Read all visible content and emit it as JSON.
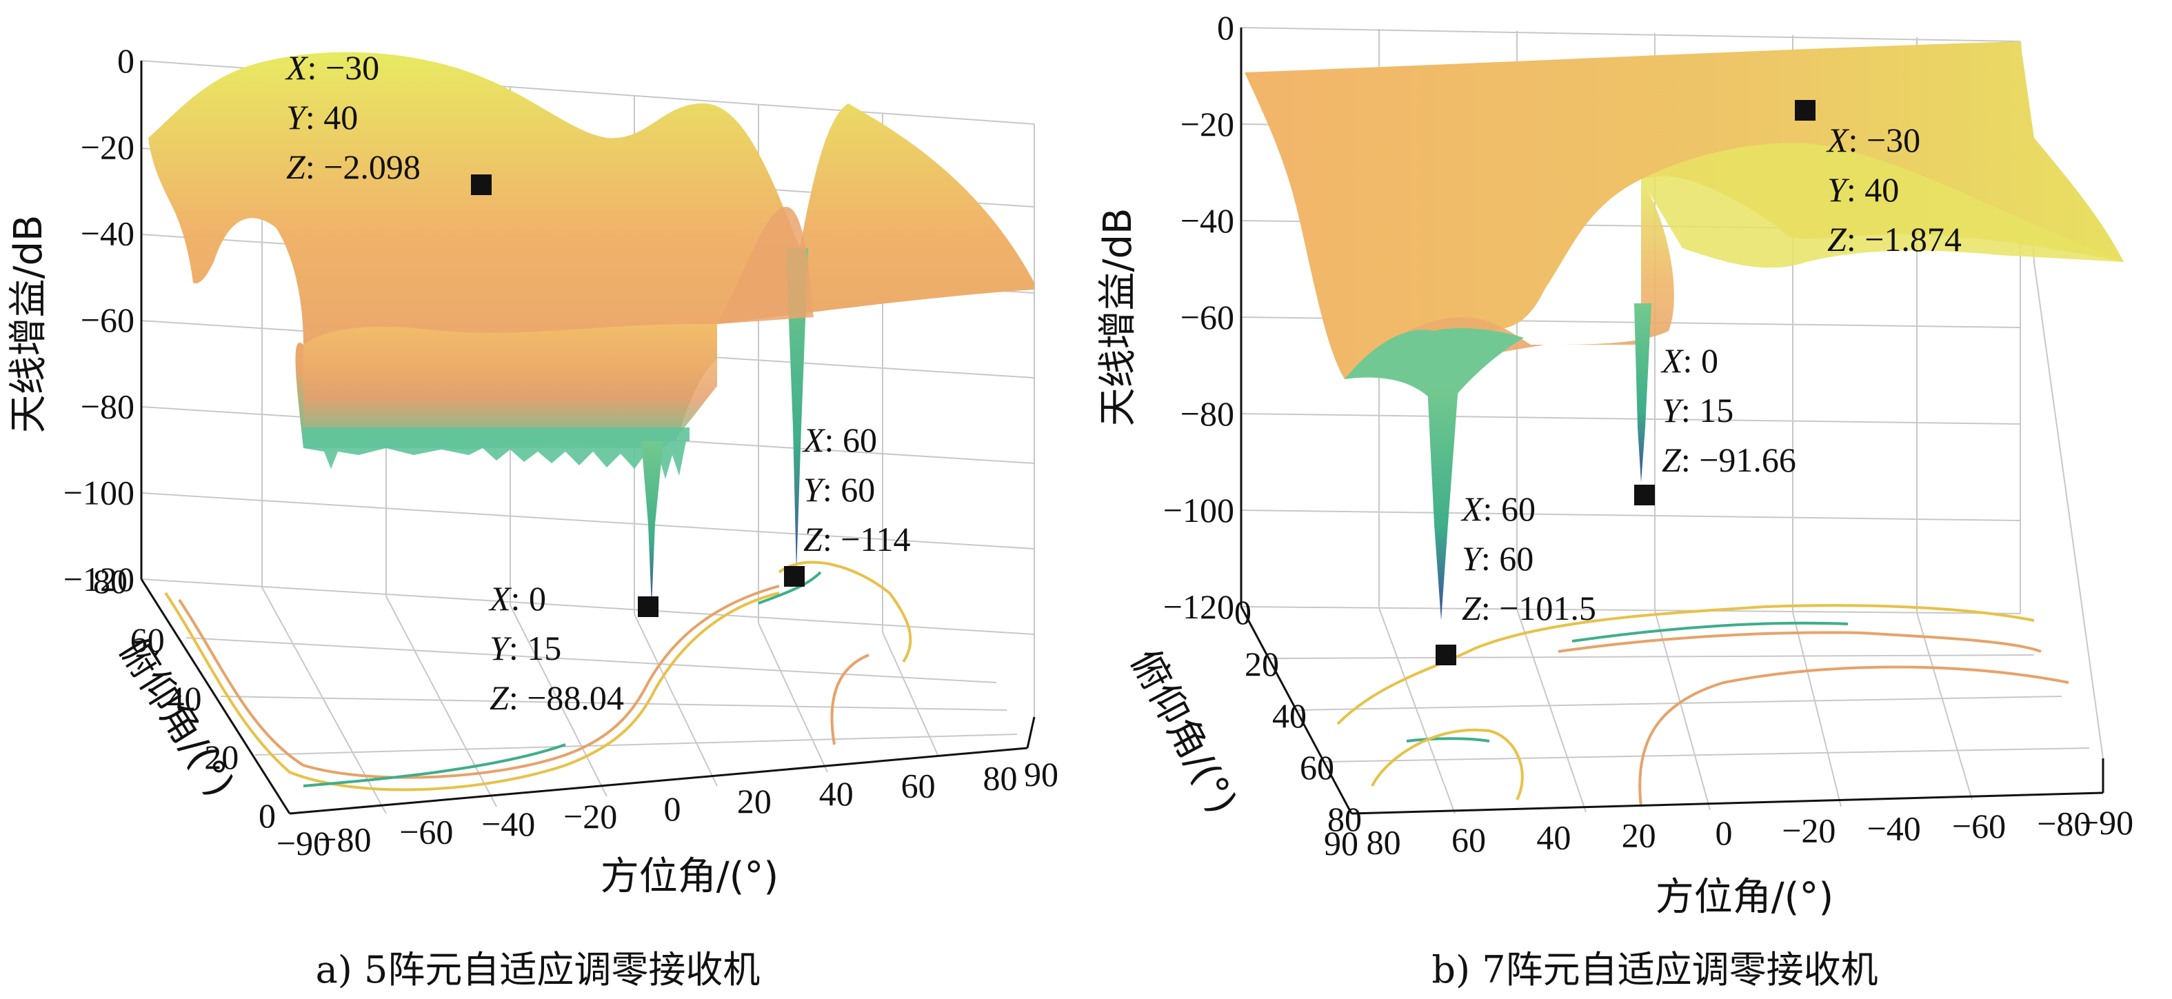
{
  "colors": {
    "surface_high": "#e8ea62",
    "surface_mid": "#f0b36a",
    "surface_low": "#5cc49a",
    "null_deep": "#3b4f9a",
    "contour_a": "#e6c24a",
    "contour_b": "#e6a36a",
    "contour_c": "#3fae8a",
    "marker": "#111111"
  },
  "chart_data": [
    {
      "type": "surface3d",
      "caption": "a) 5阵元自适应调零接收机",
      "zlabel": "天线增益/dB",
      "xlabel": "方位角/(°)",
      "ylabel": "俯仰角/(°)",
      "xlim": [
        -90,
        90
      ],
      "ylim": [
        0,
        80
      ],
      "zlim": [
        -120,
        0
      ],
      "x_ticks": [
        "−90",
        "−80",
        "−60",
        "−40",
        "−20",
        "0",
        "20",
        "40",
        "60",
        "80",
        "90"
      ],
      "y_ticks": [
        "0",
        "20",
        "40",
        "60",
        "80"
      ],
      "z_ticks": [
        "0",
        "−20",
        "−40",
        "−60",
        "−80",
        "−100",
        "−120"
      ],
      "grid": true,
      "points": [
        {
          "x": -30,
          "y": 40,
          "z": -2.098,
          "label": [
            "X: −30",
            "Y: 40",
            "Z: −2.098"
          ]
        },
        {
          "x": 0,
          "y": 15,
          "z": -88.04,
          "label": [
            "X: 0",
            "Y: 15",
            "Z: −88.04"
          ]
        },
        {
          "x": 60,
          "y": 60,
          "z": -114,
          "label": [
            "X: 60",
            "Y: 60",
            "Z: −114"
          ]
        }
      ]
    },
    {
      "type": "surface3d",
      "caption": "b) 7阵元自适应调零接收机",
      "zlabel": "天线增益/dB",
      "xlabel": "方位角/(°)",
      "ylabel": "俯仰角/(°)",
      "xlim": [
        90,
        -90
      ],
      "ylim": [
        0,
        80
      ],
      "zlim": [
        -120,
        0
      ],
      "x_ticks": [
        "90",
        "80",
        "60",
        "40",
        "20",
        "0",
        "−20",
        "−40",
        "−60",
        "−80",
        "−90"
      ],
      "y_ticks": [
        "0",
        "20",
        "40",
        "60",
        "80"
      ],
      "z_ticks": [
        "0",
        "−20",
        "−40",
        "−60",
        "−80",
        "−100",
        "−120"
      ],
      "grid": true,
      "points": [
        {
          "x": -30,
          "y": 40,
          "z": -1.874,
          "label": [
            "X: −30",
            "Y: 40",
            "Z: −1.874"
          ]
        },
        {
          "x": 0,
          "y": 15,
          "z": -91.66,
          "label": [
            "X: 0",
            "Y: 15",
            "Z: −91.66"
          ]
        },
        {
          "x": 60,
          "y": 60,
          "z": -101.5,
          "label": [
            "X: 60",
            "Y: 60",
            "Z: −101.5"
          ]
        }
      ]
    }
  ]
}
